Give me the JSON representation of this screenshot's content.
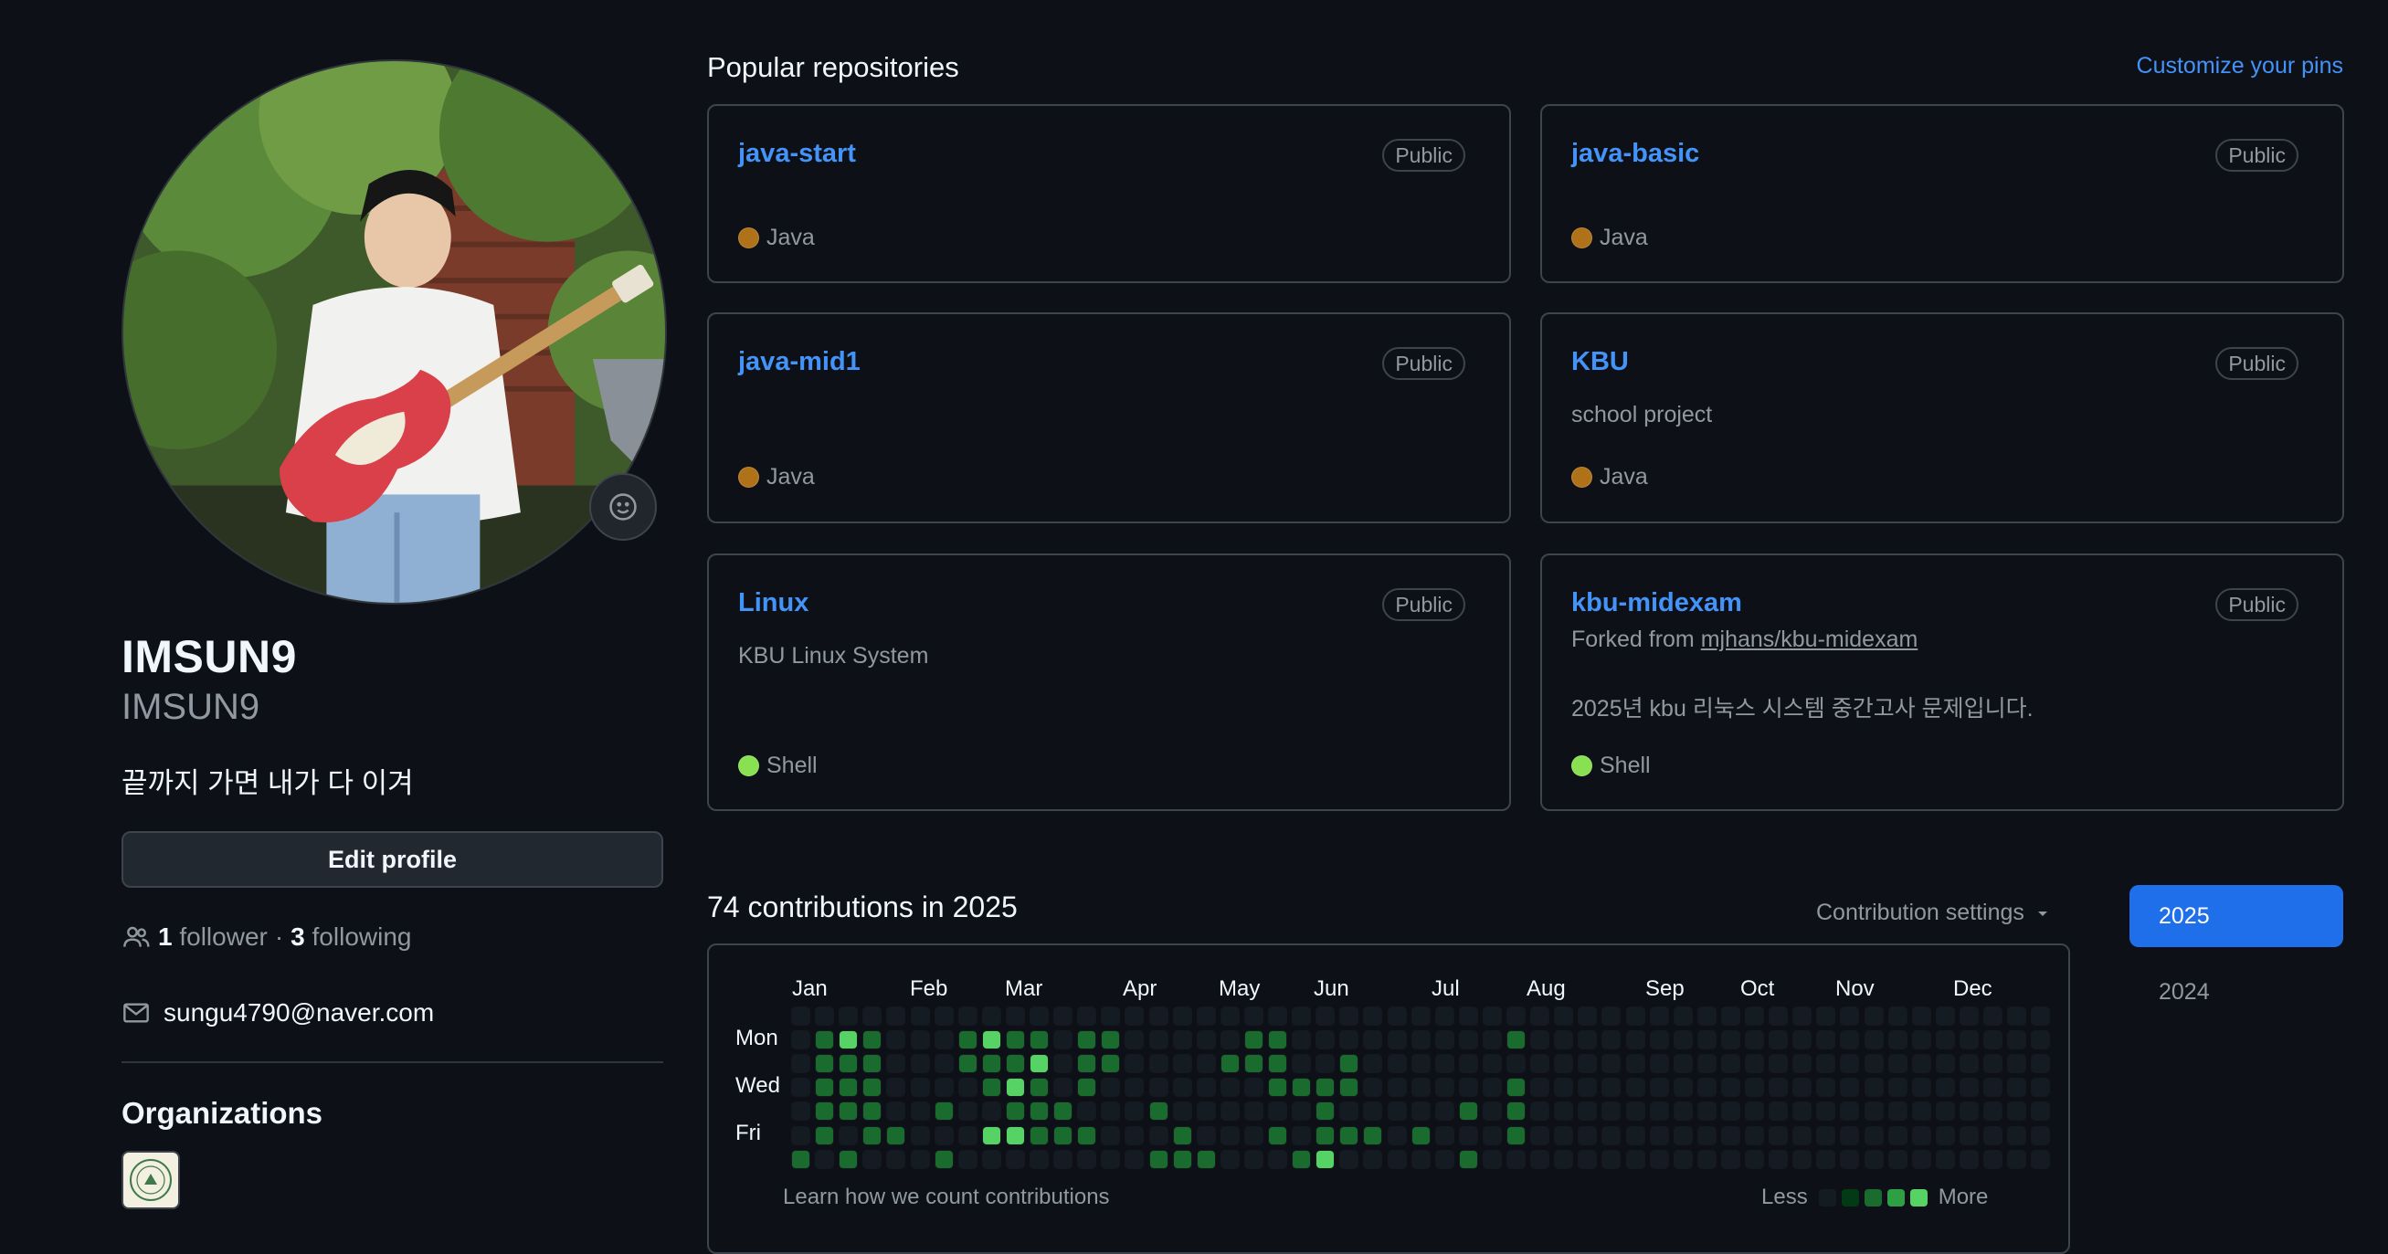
{
  "profile": {
    "fullname": "IMSUN9",
    "username": "IMSUN9",
    "bio": "끝까지 가면 내가 다 이겨",
    "edit_label": "Edit profile",
    "followers_count": "1",
    "followers_label": "follower",
    "separator": "·",
    "following_count": "3",
    "following_label": "following",
    "email": "sungu4790@naver.com",
    "org_title": "Organizations"
  },
  "pinned": {
    "title": "Popular repositories",
    "customize_label": "Customize your pins",
    "repos": [
      {
        "name": "java-start",
        "visibility": "Public",
        "description": "",
        "language": "Java",
        "lang_color": "#b07219"
      },
      {
        "name": "java-basic",
        "visibility": "Public",
        "description": "",
        "language": "Java",
        "lang_color": "#b07219"
      },
      {
        "name": "java-mid1",
        "visibility": "Public",
        "description": "",
        "language": "Java",
        "lang_color": "#b07219"
      },
      {
        "name": "KBU",
        "visibility": "Public",
        "description": "school project",
        "language": "Java",
        "lang_color": "#b07219"
      },
      {
        "name": "Linux",
        "visibility": "Public",
        "description": "KBU Linux System",
        "language": "Shell",
        "lang_color": "#89e051"
      },
      {
        "name": "kbu-midexam",
        "visibility": "Public",
        "fork_prefix": "Forked from",
        "fork_source": "mjhans/kbu-midexam",
        "description": "2025년 kbu 리눅스 시스템 중간고사 문제입니다.",
        "language": "Shell",
        "lang_color": "#89e051"
      }
    ]
  },
  "contributions": {
    "title": "74 contributions in 2025",
    "settings_label": "Contribution settings",
    "years": [
      "2025",
      "2024"
    ],
    "months": [
      "Jan",
      "Feb",
      "Mar",
      "Apr",
      "May",
      "Jun",
      "Jul",
      "Aug",
      "Sep",
      "Oct",
      "Nov",
      "Dec"
    ],
    "weekdays": [
      "Mon",
      "Wed",
      "Fri"
    ],
    "learn_label": "Learn how we count contributions",
    "less_label": "Less",
    "more_label": "More",
    "level_colors": [
      "#151b23",
      "#033a16",
      "#196c2e",
      "#2ea043",
      "#56d364"
    ],
    "weeks": [
      [
        0,
        0,
        0,
        0,
        0,
        0,
        2
      ],
      [
        0,
        2,
        2,
        2,
        2,
        2,
        0
      ],
      [
        0,
        4,
        2,
        2,
        2,
        0,
        2
      ],
      [
        0,
        2,
        2,
        2,
        2,
        2,
        0
      ],
      [
        0,
        0,
        0,
        0,
        0,
        2,
        0
      ],
      [
        0,
        0,
        0,
        0,
        0,
        0,
        0
      ],
      [
        0,
        0,
        0,
        0,
        2,
        0,
        2
      ],
      [
        0,
        2,
        2,
        0,
        0,
        0,
        0
      ],
      [
        0,
        4,
        2,
        2,
        0,
        4,
        0
      ],
      [
        0,
        2,
        2,
        4,
        2,
        4,
        0
      ],
      [
        0,
        2,
        4,
        2,
        2,
        2,
        0
      ],
      [
        0,
        0,
        0,
        0,
        2,
        2,
        0
      ],
      [
        0,
        2,
        2,
        2,
        0,
        2,
        0
      ],
      [
        0,
        2,
        2,
        0,
        0,
        0,
        0
      ],
      [
        0,
        0,
        0,
        0,
        0,
        0,
        0
      ],
      [
        0,
        0,
        0,
        0,
        2,
        0,
        2
      ],
      [
        0,
        0,
        0,
        0,
        0,
        2,
        2
      ],
      [
        0,
        0,
        0,
        0,
        0,
        0,
        2
      ],
      [
        0,
        0,
        2,
        0,
        0,
        0,
        0
      ],
      [
        0,
        2,
        2,
        0,
        0,
        0,
        0
      ],
      [
        0,
        2,
        2,
        2,
        0,
        2,
        0
      ],
      [
        0,
        0,
        0,
        2,
        0,
        0,
        2
      ],
      [
        0,
        0,
        0,
        2,
        2,
        2,
        4
      ],
      [
        0,
        0,
        2,
        2,
        0,
        2,
        0
      ],
      [
        0,
        0,
        0,
        0,
        0,
        2,
        0
      ],
      [
        0,
        0,
        0,
        0,
        0,
        0,
        0
      ],
      [
        0,
        0,
        0,
        0,
        0,
        2,
        0
      ],
      [
        0,
        0,
        0,
        0,
        0,
        0,
        0
      ],
      [
        0,
        0,
        0,
        0,
        2,
        0,
        2
      ],
      [
        0,
        0,
        0,
        0,
        0,
        0,
        0
      ],
      [
        0,
        2,
        0,
        2,
        2,
        2,
        0
      ],
      [
        0,
        0,
        0,
        0,
        0,
        0,
        0
      ],
      [
        0,
        0,
        0,
        0,
        0,
        0,
        0
      ],
      [
        0,
        0,
        0,
        0,
        0,
        0,
        0
      ],
      [
        0,
        0,
        0,
        0,
        0,
        0,
        0
      ],
      [
        0,
        0,
        0,
        0,
        0,
        0,
        0
      ],
      [
        0,
        0,
        0,
        0,
        0,
        0,
        0
      ],
      [
        0,
        0,
        0,
        0,
        0,
        0,
        0
      ],
      [
        0,
        0,
        0,
        0,
        0,
        0,
        0
      ],
      [
        0,
        0,
        0,
        0,
        0,
        0,
        0
      ],
      [
        0,
        0,
        0,
        0,
        0,
        0,
        0
      ],
      [
        0,
        0,
        0,
        0,
        0,
        0,
        0
      ],
      [
        0,
        0,
        0,
        0,
        0,
        0,
        0
      ],
      [
        0,
        0,
        0,
        0,
        0,
        0,
        0
      ],
      [
        0,
        0,
        0,
        0,
        0,
        0,
        0
      ],
      [
        0,
        0,
        0,
        0,
        0,
        0,
        0
      ],
      [
        0,
        0,
        0,
        0,
        0,
        0,
        0
      ],
      [
        0,
        0,
        0,
        0,
        0,
        0,
        0
      ],
      [
        0,
        0,
        0,
        0,
        0,
        0,
        0
      ],
      [
        0,
        0,
        0,
        0,
        0,
        0,
        0
      ],
      [
        0,
        0,
        0,
        0,
        0,
        0,
        0
      ],
      [
        0,
        0,
        0,
        0,
        0,
        0,
        0
      ],
      [
        0,
        0,
        0,
        0,
        0,
        0,
        0
      ]
    ]
  }
}
